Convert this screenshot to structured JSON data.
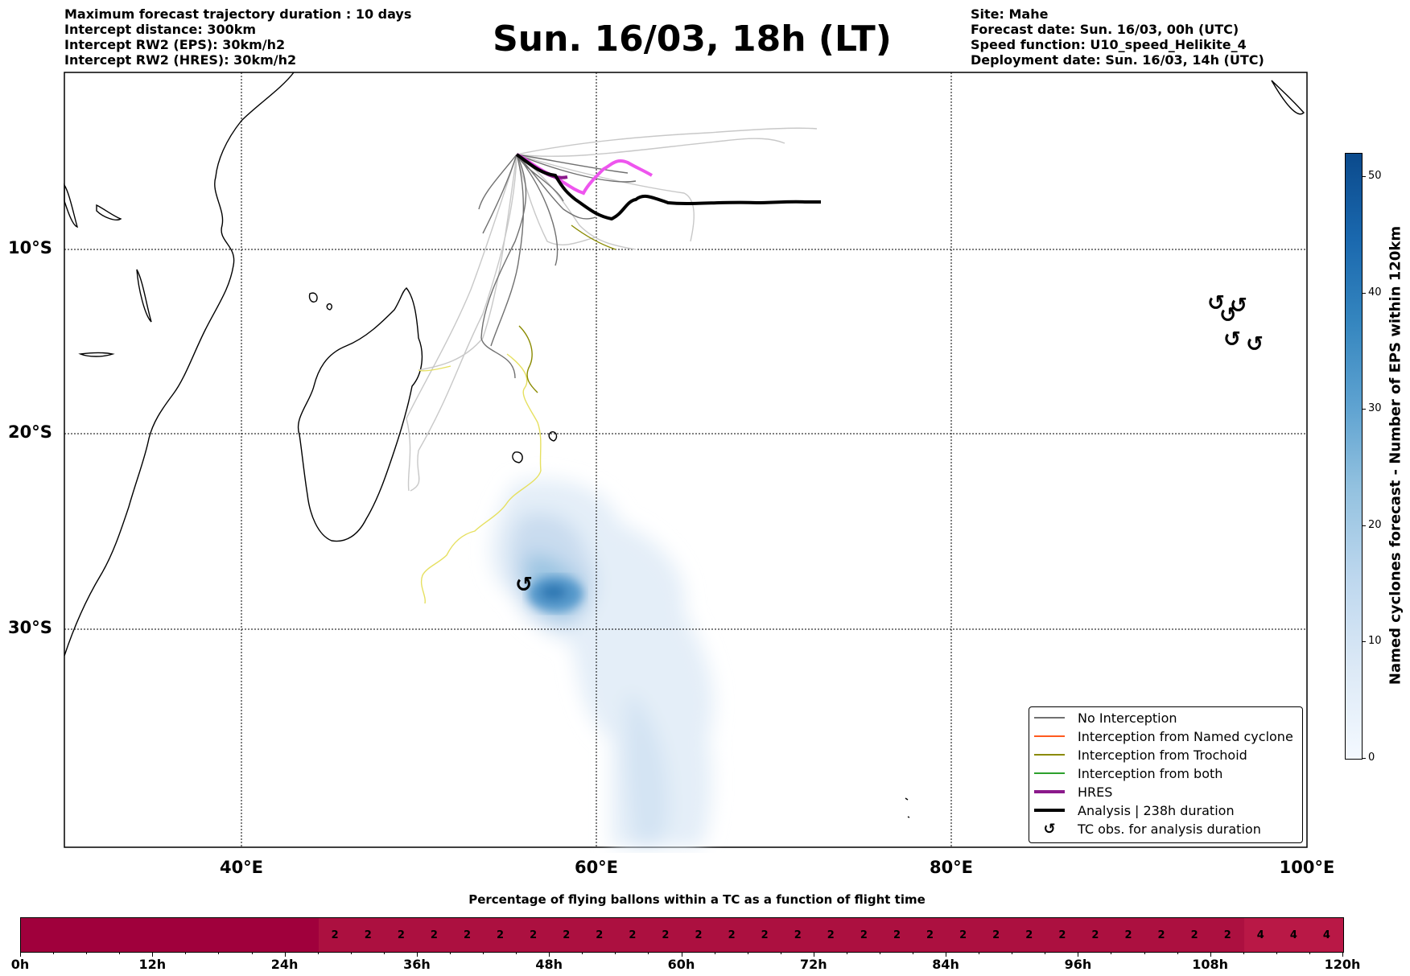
{
  "header": {
    "left": [
      "Maximum forecast trajectory duration : 10 days",
      "Intercept distance: 300km",
      "Intercept RW2 (EPS):  30km/h2",
      "Intercept RW2 (HRES): 30km/h2"
    ],
    "title": "Sun. 16/03, 18h (LT)",
    "right": [
      "Site: Mahe",
      "Forecast date: Sun. 16/03, 00h (UTC)",
      "Speed function: U10_speed_Helikite_4",
      "Deployment date: Sun. 16/03, 14h (UTC)"
    ]
  },
  "map": {
    "lat_labels": [
      "10°S",
      "20°S",
      "30°S"
    ],
    "lon_labels": [
      "40°E",
      "60°E",
      "80°E",
      "100°E"
    ],
    "tc_symbol": "↺",
    "colors": {
      "no_interception": "#707070",
      "named_cyclone": "#ff5a1f",
      "trochoid": "#8a8a00",
      "both": "#2ca02c",
      "hres": "#8b1a8b",
      "analysis": "#000000",
      "eps_light": "#c8c8c8",
      "hres_forecast": "#ee55ee",
      "trochoid_light": "#e6e060"
    }
  },
  "legend": {
    "items": [
      {
        "label": "No Interception",
        "kind": "line",
        "color": "#707070"
      },
      {
        "label": "Interception from Named cyclone",
        "kind": "line",
        "color": "#ff5a1f"
      },
      {
        "label": "Interception from Trochoid",
        "kind": "line",
        "color": "#8a8a00"
      },
      {
        "label": "Interception from both",
        "kind": "line",
        "color": "#2ca02c"
      },
      {
        "label": "HRES",
        "kind": "thick",
        "color": "#8b1a8b"
      },
      {
        "label": "Analysis | 238h duration",
        "kind": "thick",
        "color": "#000000"
      },
      {
        "label": "TC obs. for analysis duration",
        "kind": "symbol",
        "color": "#000000"
      }
    ]
  },
  "colorbar": {
    "title": "Named cyclones forecast - Number of EPS within 120km",
    "ticks": [
      "0",
      "10",
      "20",
      "30",
      "40",
      "50"
    ],
    "max": 52
  },
  "timebar": {
    "title": "Percentage of flying ballons within a TC as a function of flight time",
    "tick_labels": [
      "0h",
      "12h",
      "24h",
      "36h",
      "48h",
      "60h",
      "72h",
      "84h",
      "96h",
      "108h",
      "120h"
    ],
    "segments": [
      {
        "from_h": 0,
        "to_h": 27,
        "label": "",
        "color": "#a0003c"
      },
      {
        "from_h": 27,
        "to_h": 111,
        "label": "2",
        "color": "#ac1040"
      },
      {
        "from_h": 111,
        "to_h": 120,
        "label": "4",
        "color": "#b91846"
      }
    ],
    "cell_hours": 3
  }
}
